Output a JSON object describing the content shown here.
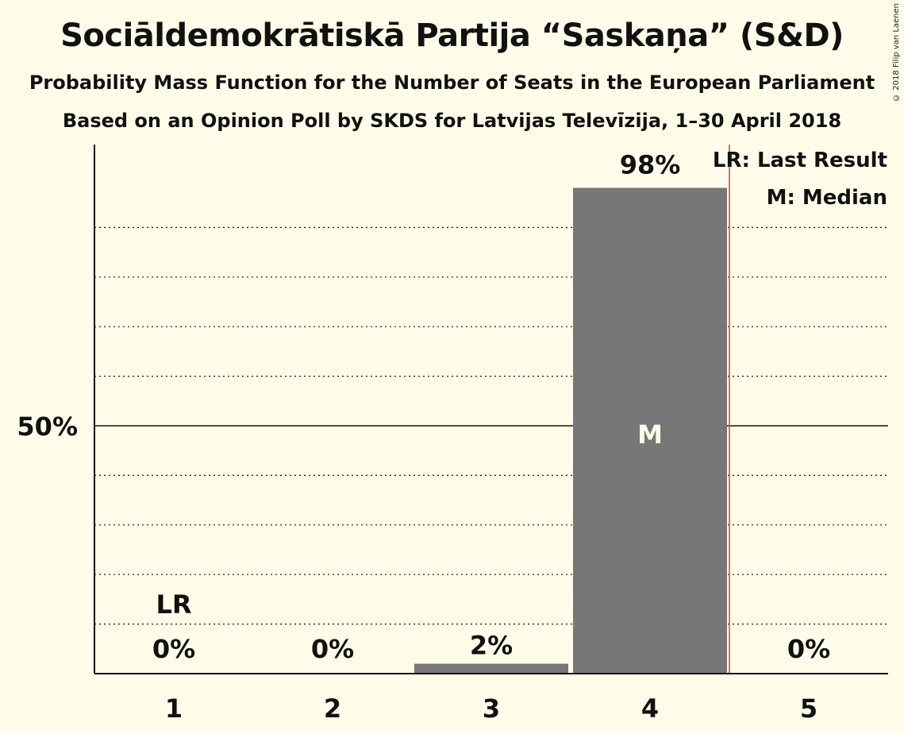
{
  "title": "Sociāldemokrātiskā Partija “Saskaņa” (S&D)",
  "subtitle": "Probability Mass Function for the Number of Seats in the European Parliament",
  "source_line": "Based on an Opinion Poll by SKDS for Latvijas Televīzija, 1–30 April 2018",
  "copyright": "© 2018 Filip van Laenen",
  "legend": {
    "last_result": "LR: Last Result",
    "median": "M: Median"
  },
  "colors": {
    "background": "#fffde9",
    "bar": "#777777",
    "last_result_line": "#e23a3a",
    "text": "#111111",
    "median_text": "#fffde9"
  },
  "chart_data": {
    "type": "bar",
    "categories": [
      "1",
      "2",
      "3",
      "4",
      "5"
    ],
    "values": [
      0,
      0,
      2,
      98,
      0
    ],
    "value_labels": [
      "0%",
      "0%",
      "2%",
      "98%",
      "0%"
    ],
    "ytick_label": "50%",
    "ylim": [
      0,
      100
    ],
    "grid": "dotted every 10%, solid at 50%",
    "last_result": {
      "category": "1",
      "label": "LR",
      "line_after_category": "4"
    },
    "median": {
      "category": "4",
      "label": "M"
    },
    "legend_position": "top-right"
  }
}
